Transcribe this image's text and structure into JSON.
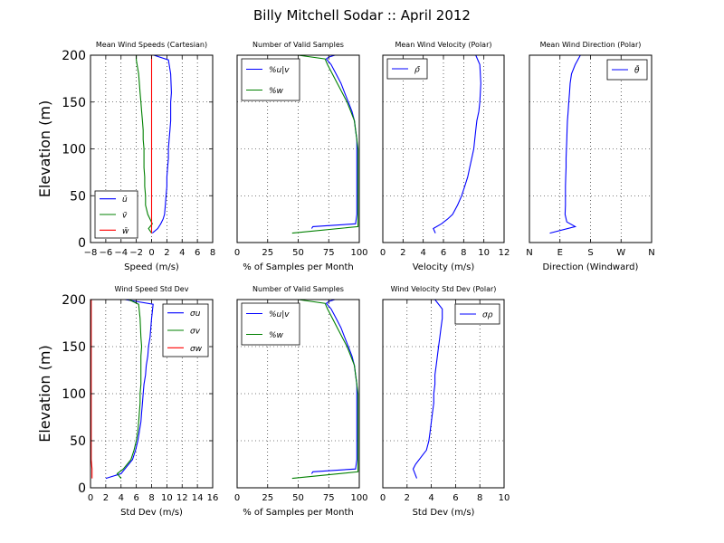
{
  "figure": {
    "title": "Billy Mitchell Sodar :: April 2012"
  },
  "colors": {
    "blue": "#0000ff",
    "green": "#008000",
    "red": "#ff0000",
    "axis": "#000000"
  },
  "chart_data": [
    {
      "type": "line",
      "title": "Mean Wind Speeds (Cartesian)",
      "xlabel": "Speed (m/s)",
      "ylabel": "Elevation (m)",
      "xlim": [
        -8,
        8
      ],
      "ylim": [
        0,
        200
      ],
      "xticks": [
        -8,
        -6,
        -4,
        -2,
        0,
        2,
        4,
        6,
        8
      ],
      "xticklabels": [
        "−8",
        "−6",
        "−4",
        "−2",
        "0",
        "2",
        "4",
        "6",
        "8"
      ],
      "yticks": [
        0,
        50,
        100,
        150,
        200
      ],
      "yticklabels": [
        "0",
        "50",
        "100",
        "150",
        "200"
      ],
      "grid": true,
      "legend": {
        "position": "lower-left",
        "entries": [
          "ū",
          "v̄",
          "w̄"
        ]
      },
      "series": [
        {
          "name": "ū",
          "color": "blue",
          "x": [
            0.1,
            0.8,
            1.2,
            1.5,
            1.7,
            1.8,
            1.9,
            2.0,
            2.0,
            2.1,
            2.2,
            2.2,
            2.3,
            2.4,
            2.5,
            2.5,
            2.5,
            2.6,
            2.5,
            2.2,
            0.3
          ],
          "y": [
            10,
            15,
            20,
            25,
            30,
            40,
            50,
            60,
            70,
            80,
            90,
            100,
            110,
            120,
            130,
            140,
            150,
            160,
            180,
            195,
            200
          ]
        },
        {
          "name": "v̄",
          "color": "green",
          "x": [
            0.0,
            -0.4,
            0.1,
            -0.2,
            -0.5,
            -0.8,
            -0.8,
            -0.9,
            -0.9,
            -1.0,
            -1.0,
            -1.0,
            -1.1,
            -1.1,
            -1.2,
            -1.3,
            -1.4,
            -1.5,
            -1.7,
            -2.0,
            -2.0
          ],
          "y": [
            10,
            15,
            20,
            25,
            30,
            40,
            50,
            60,
            70,
            80,
            90,
            100,
            110,
            120,
            130,
            140,
            150,
            160,
            180,
            195,
            200
          ]
        },
        {
          "name": "w̄",
          "color": "red",
          "x": [
            0.0,
            0.0,
            0.0,
            0.0,
            0.0,
            0.0,
            0.0,
            0.0,
            0.0
          ],
          "y": [
            10,
            30,
            50,
            75,
            100,
            125,
            150,
            175,
            200
          ]
        }
      ]
    },
    {
      "type": "line",
      "title": "Number of Valid Samples",
      "xlabel": "% of Samples per Month",
      "ylabel": "",
      "xlim": [
        0,
        100
      ],
      "ylim": [
        0,
        200
      ],
      "xticks": [
        0,
        25,
        50,
        75,
        100
      ],
      "xticklabels": [
        "0",
        "25",
        "50",
        "75",
        "100"
      ],
      "yticks": [],
      "yticklabels": [],
      "grid": true,
      "legend": {
        "position": "top-left",
        "entries": [
          "%u|v",
          "%w"
        ]
      },
      "series": [
        {
          "name": "%u|v",
          "color": "blue",
          "x": [
            61,
            62,
            97,
            98,
            98,
            98,
            98,
            98,
            98,
            97,
            96,
            94,
            91,
            88,
            85,
            81,
            77,
            73,
            75,
            80,
            78
          ],
          "y": [
            15,
            17,
            20,
            30,
            50,
            70,
            90,
            100,
            110,
            120,
            130,
            140,
            150,
            160,
            170,
            180,
            190,
            196,
            198,
            200,
            200
          ]
        },
        {
          "name": "%w",
          "color": "green",
          "x": [
            45,
            99,
            99,
            99,
            99,
            99,
            99,
            99,
            98,
            97,
            96,
            93,
            90,
            86,
            82,
            78,
            74,
            72,
            50,
            30
          ],
          "y": [
            10,
            17,
            20,
            30,
            50,
            70,
            90,
            100,
            110,
            120,
            130,
            140,
            150,
            160,
            170,
            180,
            190,
            196,
            200,
            200
          ]
        }
      ]
    },
    {
      "type": "line",
      "title": "Mean Wind Velocity (Polar)",
      "xlabel": "Velocity (m/s)",
      "ylabel": "",
      "xlim": [
        0,
        12
      ],
      "ylim": [
        0,
        200
      ],
      "xticks": [
        0,
        2,
        4,
        6,
        8,
        10,
        12
      ],
      "xticklabels": [
        "0",
        "2",
        "4",
        "6",
        "8",
        "10",
        "12"
      ],
      "yticks": [],
      "yticklabels": [],
      "grid": true,
      "legend": {
        "position": "top-left",
        "entries": [
          "ρ̄"
        ]
      },
      "series": [
        {
          "name": "ρ̄",
          "color": "blue",
          "x": [
            5.2,
            5.0,
            5.8,
            6.4,
            6.9,
            7.4,
            7.8,
            8.1,
            8.4,
            8.6,
            8.8,
            9.0,
            9.1,
            9.2,
            9.3,
            9.5,
            9.6,
            9.7,
            9.6,
            9.2
          ],
          "y": [
            10,
            15,
            20,
            25,
            30,
            40,
            50,
            60,
            70,
            80,
            90,
            100,
            110,
            120,
            130,
            140,
            150,
            170,
            190,
            200
          ]
        }
      ]
    },
    {
      "type": "line",
      "title": "Mean Wind Direction (Polar)",
      "xlabel": "Direction (Windward)",
      "ylabel": "",
      "xlim": [
        0,
        360
      ],
      "ylim": [
        0,
        200
      ],
      "xticks": [
        0,
        90,
        180,
        270,
        360
      ],
      "xticklabels": [
        "N",
        "E",
        "S",
        "W",
        "N"
      ],
      "yticks": [],
      "yticklabels": [],
      "grid": true,
      "legend": {
        "position": "top-right",
        "entries": [
          "θ̄"
        ]
      },
      "series": [
        {
          "name": "θ̄",
          "color": "blue",
          "x": [
            60,
            135,
            110,
            105,
            106,
            106,
            106,
            107,
            108,
            108,
            109,
            110,
            111,
            112,
            114,
            116,
            118,
            120,
            124,
            135,
            150
          ],
          "y": [
            10,
            17,
            22,
            30,
            40,
            50,
            60,
            70,
            80,
            90,
            100,
            110,
            120,
            130,
            140,
            150,
            160,
            170,
            180,
            190,
            200
          ]
        }
      ]
    },
    {
      "type": "line",
      "title": "Wind Speed Std Dev",
      "xlabel": "Std Dev (m/s)",
      "ylabel": "Elevation (m)",
      "xlim": [
        0,
        16
      ],
      "ylim": [
        0,
        200
      ],
      "xticks": [
        0,
        2,
        4,
        6,
        8,
        10,
        12,
        14,
        16
      ],
      "xticklabels": [
        "0",
        "2",
        "4",
        "6",
        "8",
        "10",
        "12",
        "14",
        "16"
      ],
      "yticks": [
        0,
        50,
        100,
        150,
        200
      ],
      "yticklabels": [
        "0",
        "50",
        "100",
        "150",
        "200"
      ],
      "grid": true,
      "legend": {
        "position": "top-right",
        "entries": [
          "σu",
          "σv",
          "σw"
        ]
      },
      "series": [
        {
          "name": "σu",
          "color": "blue",
          "x": [
            2.0,
            4.0,
            4.5,
            5.0,
            5.5,
            5.9,
            6.2,
            6.4,
            6.6,
            6.7,
            6.8,
            6.9,
            7.0,
            7.2,
            7.3,
            7.5,
            7.6,
            7.8,
            8.0,
            8.2,
            4.5
          ],
          "y": [
            10,
            15,
            20,
            25,
            30,
            40,
            50,
            60,
            70,
            80,
            90,
            100,
            110,
            120,
            130,
            140,
            150,
            160,
            180,
            195,
            200
          ]
        },
        {
          "name": "σv",
          "color": "green",
          "x": [
            4.0,
            3.5,
            4.3,
            4.8,
            5.3,
            5.7,
            6.0,
            6.2,
            6.3,
            6.4,
            6.5,
            6.5,
            6.6,
            6.6,
            6.6,
            6.6,
            6.7,
            6.6,
            6.5,
            6.3,
            5.0
          ],
          "y": [
            10,
            15,
            20,
            25,
            30,
            40,
            50,
            60,
            70,
            80,
            90,
            100,
            110,
            120,
            130,
            140,
            150,
            160,
            180,
            195,
            200
          ]
        },
        {
          "name": "σw",
          "color": "red",
          "x": [
            0.2,
            0.2,
            0.1,
            0.1,
            0.1,
            0.1,
            0.1,
            0.1,
            0.1,
            0.1,
            0.1
          ],
          "y": [
            10,
            20,
            30,
            50,
            70,
            100,
            120,
            140,
            160,
            180,
            200
          ]
        }
      ]
    },
    {
      "type": "line",
      "title": "Number of Valid Samples",
      "xlabel": "% of Samples per Month",
      "ylabel": "",
      "xlim": [
        0,
        100
      ],
      "ylim": [
        0,
        200
      ],
      "xticks": [
        0,
        25,
        50,
        75,
        100
      ],
      "xticklabels": [
        "0",
        "25",
        "50",
        "75",
        "100"
      ],
      "yticks": [],
      "yticklabels": [],
      "grid": true,
      "legend": {
        "position": "top-left",
        "entries": [
          "%u|v",
          "%w"
        ]
      },
      "series": [
        {
          "name": "%u|v",
          "color": "blue",
          "x": [
            61,
            62,
            97,
            98,
            98,
            98,
            98,
            98,
            98,
            97,
            96,
            94,
            91,
            88,
            85,
            81,
            77,
            73,
            75,
            80,
            78
          ],
          "y": [
            15,
            17,
            20,
            30,
            50,
            70,
            90,
            100,
            110,
            120,
            130,
            140,
            150,
            160,
            170,
            180,
            190,
            196,
            198,
            200,
            200
          ]
        },
        {
          "name": "%w",
          "color": "green",
          "x": [
            45,
            99,
            99,
            99,
            99,
            99,
            99,
            99,
            98,
            97,
            96,
            93,
            90,
            86,
            82,
            78,
            74,
            72,
            50,
            30
          ],
          "y": [
            10,
            17,
            20,
            30,
            50,
            70,
            90,
            100,
            110,
            120,
            130,
            140,
            150,
            160,
            170,
            180,
            190,
            196,
            200,
            200
          ]
        }
      ]
    },
    {
      "type": "line",
      "title": "Wind Velocity Std Dev (Polar)",
      "xlabel": "Std Dev (m/s)",
      "ylabel": "",
      "xlim": [
        0,
        10
      ],
      "ylim": [
        0,
        200
      ],
      "xticks": [
        0,
        2,
        4,
        6,
        8,
        10
      ],
      "xticklabels": [
        "0",
        "2",
        "4",
        "6",
        "8",
        "10"
      ],
      "yticks": [],
      "yticklabels": [],
      "grid": true,
      "legend": {
        "position": "top-right",
        "entries": [
          "σρ"
        ]
      },
      "series": [
        {
          "name": "σρ",
          "color": "blue",
          "x": [
            2.8,
            2.5,
            2.7,
            3.0,
            3.3,
            3.6,
            3.8,
            3.9,
            4.0,
            4.1,
            4.2,
            4.2,
            4.3,
            4.3,
            4.4,
            4.5,
            4.6,
            4.7,
            4.8,
            4.9,
            4.9,
            4.3
          ],
          "y": [
            10,
            20,
            25,
            30,
            35,
            40,
            50,
            60,
            70,
            80,
            90,
            100,
            110,
            120,
            130,
            140,
            150,
            160,
            170,
            180,
            190,
            200
          ]
        }
      ]
    }
  ]
}
